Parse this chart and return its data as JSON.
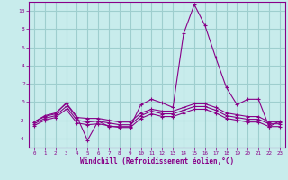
{
  "xlabel": "Windchill (Refroidissement éolien,°C)",
  "bg_color": "#c8ecec",
  "grid_color": "#9ecece",
  "line_color": "#880088",
  "x": [
    0,
    1,
    2,
    3,
    4,
    5,
    6,
    7,
    8,
    9,
    10,
    11,
    12,
    13,
    14,
    15,
    16,
    17,
    18,
    19,
    20,
    21,
    22,
    23
  ],
  "y_main": [
    -2.2,
    -1.6,
    -1.3,
    -0.1,
    -1.6,
    -4.2,
    -2.1,
    -2.7,
    -2.7,
    -2.7,
    -0.3,
    0.3,
    -0.1,
    -0.6,
    7.5,
    10.7,
    8.4,
    4.9,
    1.6,
    -0.3,
    0.3,
    0.3,
    -2.7,
    -2.1
  ],
  "y_line2": [
    -2.2,
    -1.5,
    -1.2,
    -0.2,
    -1.7,
    -1.8,
    -1.8,
    -2.0,
    -2.2,
    -2.2,
    -1.2,
    -0.8,
    -1.0,
    -1.0,
    -0.6,
    -0.2,
    -0.2,
    -0.6,
    -1.2,
    -1.4,
    -1.6,
    -1.6,
    -2.2,
    -2.2
  ],
  "y_line3": [
    -2.4,
    -1.8,
    -1.5,
    -0.5,
    -2.0,
    -2.2,
    -2.1,
    -2.3,
    -2.5,
    -2.5,
    -1.5,
    -1.0,
    -1.3,
    -1.3,
    -0.9,
    -0.5,
    -0.5,
    -0.9,
    -1.5,
    -1.7,
    -1.9,
    -1.9,
    -2.4,
    -2.4
  ],
  "y_line4": [
    -2.6,
    -2.0,
    -1.7,
    -0.8,
    -2.3,
    -2.5,
    -2.4,
    -2.6,
    -2.8,
    -2.8,
    -1.8,
    -1.3,
    -1.6,
    -1.6,
    -1.2,
    -0.8,
    -0.8,
    -1.2,
    -1.8,
    -2.0,
    -2.2,
    -2.2,
    -2.7,
    -2.7
  ],
  "ylim": [
    -5,
    11
  ],
  "xlim": [
    -0.5,
    23.5
  ],
  "yticks": [
    -4,
    -2,
    0,
    2,
    4,
    6,
    8,
    10
  ],
  "xticks": [
    0,
    1,
    2,
    3,
    4,
    5,
    6,
    7,
    8,
    9,
    10,
    11,
    12,
    13,
    14,
    15,
    16,
    17,
    18,
    19,
    20,
    21,
    22,
    23
  ]
}
